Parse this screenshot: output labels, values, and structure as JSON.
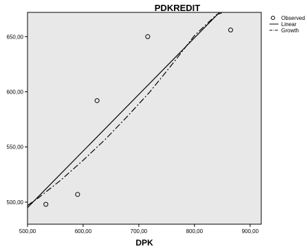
{
  "chart_data": {
    "type": "scatter",
    "title": "PDKREDIT",
    "xlabel": "DPK",
    "ylabel": "",
    "xlim": [
      500,
      920
    ],
    "ylim": [
      480,
      672
    ],
    "x_ticks": [
      "500,00",
      "600,00",
      "700,00",
      "800,00",
      "900,00"
    ],
    "x_tick_values": [
      500,
      600,
      700,
      800,
      900
    ],
    "y_ticks": [
      "500,00",
      "550,00",
      "600,00",
      "650,00"
    ],
    "y_tick_values": [
      500,
      550,
      600,
      650
    ],
    "grid": false,
    "legend_position": "top-right",
    "observed": {
      "name": "Observed",
      "x": [
        533,
        590,
        625,
        716,
        865
      ],
      "y": [
        498,
        507,
        592,
        650,
        656
      ]
    },
    "fits": [
      {
        "name": "Linear",
        "style": "solid",
        "x": [
          500,
          845
        ],
        "y": [
          495,
          672
        ]
      },
      {
        "name": "Growth",
        "style": "dashdot",
        "x": [
          500,
          520,
          560,
          600,
          640,
          680,
          720,
          760,
          800,
          840,
          852
        ],
        "y": [
          497,
          504,
          520,
          538,
          557,
          578,
          600,
          625,
          651,
          670,
          672
        ]
      }
    ],
    "legend": [
      "Observed",
      "Linear",
      "Growth"
    ]
  },
  "colors": {
    "plot_background": "#e8e8e8",
    "line": "#000000",
    "marker": "#000000"
  }
}
